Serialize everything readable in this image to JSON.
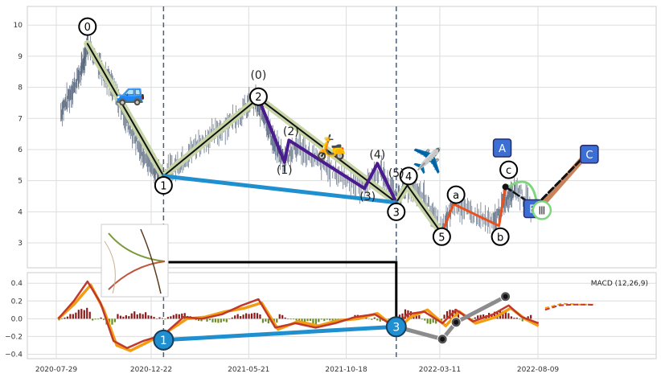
{
  "chart_data": [
    {
      "type": "line",
      "panel": "price",
      "ylim": [
        2.2,
        10.6
      ],
      "y_ticks": [
        "3",
        "4",
        "5",
        "6",
        "7",
        "8",
        "9",
        "10"
      ],
      "grid": true,
      "colors": {
        "price": "#5a6a80",
        "wave_fill": "#c8d5a8",
        "primary": "#111111",
        "purple": "#4b1a8f",
        "blue_line": "#1f8fd0",
        "dashed_vertical": "#4a5f78",
        "orange": "#e8501e",
        "copper": "#c9825a",
        "green_arc": "#7ed67e",
        "label_box": "#3b6fd4"
      },
      "price_path": [
        {
          "date": "2020-08-05",
          "y": 7.2
        },
        {
          "date": "2020-08-20",
          "y": 7.8
        },
        {
          "date": "2020-09-05",
          "y": 8.5
        },
        {
          "date": "2020-09-15",
          "y": 9.4
        },
        {
          "date": "2020-10-05",
          "y": 8.7
        },
        {
          "date": "2020-10-25",
          "y": 7.9
        },
        {
          "date": "2020-11-15",
          "y": 6.9
        },
        {
          "date": "2020-12-05",
          "y": 6.0
        },
        {
          "date": "2020-12-25",
          "y": 5.4
        },
        {
          "date": "2021-01-10",
          "y": 5.15
        },
        {
          "date": "2021-02-05",
          "y": 5.6
        },
        {
          "date": "2021-03-05",
          "y": 6.2
        },
        {
          "date": "2021-04-05",
          "y": 6.6
        },
        {
          "date": "2021-05-05",
          "y": 7.1
        },
        {
          "date": "2021-05-30",
          "y": 7.6
        },
        {
          "date": "2021-06-15",
          "y": 7.0
        },
        {
          "date": "2021-07-01",
          "y": 6.1
        },
        {
          "date": "2021-07-15",
          "y": 5.7
        },
        {
          "date": "2021-08-05",
          "y": 6.1
        },
        {
          "date": "2021-09-05",
          "y": 5.6
        },
        {
          "date": "2021-10-05",
          "y": 5.2
        },
        {
          "date": "2021-11-10",
          "y": 4.8
        },
        {
          "date": "2021-12-10",
          "y": 5.3
        },
        {
          "date": "2022-01-03",
          "y": 4.4
        },
        {
          "date": "2022-01-20",
          "y": 4.9
        },
        {
          "date": "2022-02-15",
          "y": 4.5
        },
        {
          "date": "2022-03-14",
          "y": 3.3
        },
        {
          "date": "2022-04-01",
          "y": 4.3
        },
        {
          "date": "2022-05-01",
          "y": 3.9
        },
        {
          "date": "2022-06-01",
          "y": 3.6
        },
        {
          "date": "2022-06-20",
          "y": 4.4
        },
        {
          "date": "2022-07-05",
          "y": 4.8
        },
        {
          "date": "2022-08-01",
          "y": 4.1
        }
      ],
      "wave_lines": [
        {
          "id": "main",
          "color": "#111111",
          "width": 2,
          "halo": true,
          "points": [
            {
              "date": "2020-09-15",
              "y": 9.4
            },
            {
              "date": "2021-01-10",
              "y": 5.15
            },
            {
              "date": "2021-06-05",
              "y": 7.65
            },
            {
              "date": "2022-01-03",
              "y": 4.3
            },
            {
              "date": "2022-01-20",
              "y": 4.85
            },
            {
              "date": "2022-03-14",
              "y": 3.3
            }
          ]
        },
        {
          "id": "purple",
          "color": "#4b1a8f",
          "width": 4,
          "halo": false,
          "points": [
            {
              "date": "2021-06-05",
              "y": 7.65
            },
            {
              "date": "2021-07-15",
              "y": 5.6
            },
            {
              "date": "2021-07-22",
              "y": 6.3
            },
            {
              "date": "2021-11-15",
              "y": 4.75
            },
            {
              "date": "2021-12-05",
              "y": 5.55
            },
            {
              "date": "2022-01-03",
              "y": 4.3
            }
          ]
        },
        {
          "id": "blue",
          "color": "#1f8fd0",
          "width": 5,
          "halo": false,
          "points": [
            {
              "date": "2021-01-10",
              "y": 5.15
            },
            {
              "date": "2022-01-03",
              "y": 4.3
            }
          ]
        },
        {
          "id": "orange",
          "color": "#e8501e",
          "width": 3,
          "halo": false,
          "points": [
            {
              "date": "2022-03-14",
              "y": 3.3
            },
            {
              "date": "2022-04-01",
              "y": 4.25
            },
            {
              "date": "2022-06-10",
              "y": 3.55
            },
            {
              "date": "2022-06-20",
              "y": 4.8
            }
          ]
        },
        {
          "id": "dark_dash",
          "color": "#111111",
          "width": 2.5,
          "halo": false,
          "dash": true,
          "points": [
            {
              "date": "2022-06-20",
              "y": 4.8
            },
            {
              "date": "2022-08-10",
              "y": 4.1
            }
          ]
        },
        {
          "id": "copper",
          "color": "#c9825a",
          "width": 7,
          "halo": false,
          "points": [
            {
              "date": "2022-08-10",
              "y": 4.1
            },
            {
              "date": "2022-10-25",
              "y": 5.9
            }
          ]
        },
        {
          "id": "copper_dash",
          "color": "#111111",
          "width": 3,
          "halo": false,
          "dash": true,
          "points": [
            {
              "date": "2022-08-15",
              "y": 4.4
            },
            {
              "date": "2022-10-25",
              "y": 5.9
            }
          ]
        }
      ],
      "labels": [
        {
          "text": "0",
          "date": "2020-09-15",
          "y": 9.95,
          "style": "circle"
        },
        {
          "text": "1",
          "date": "2021-01-10",
          "y": 4.85,
          "style": "circle"
        },
        {
          "text": "2",
          "date": "2021-06-05",
          "y": 7.7,
          "style": "circle"
        },
        {
          "text": "3",
          "date": "2022-01-03",
          "y": 4.0,
          "style": "circle"
        },
        {
          "text": "4",
          "date": "2022-01-22",
          "y": 5.15,
          "style": "circle"
        },
        {
          "text": "5",
          "date": "2022-03-14",
          "y": 3.2,
          "style": "circle"
        },
        {
          "text": "a",
          "date": "2022-04-05",
          "y": 4.55,
          "style": "circle"
        },
        {
          "text": "b",
          "date": "2022-06-12",
          "y": 3.2,
          "style": "circle"
        },
        {
          "text": "c",
          "date": "2022-06-25",
          "y": 5.35,
          "style": "circle"
        },
        {
          "text": "(0)",
          "date": "2021-06-05",
          "y": 8.4,
          "style": "plain"
        },
        {
          "text": "(1)",
          "date": "2021-07-15",
          "y": 5.35,
          "style": "plain"
        },
        {
          "text": "(2)",
          "date": "2021-07-25",
          "y": 6.6,
          "style": "plain"
        },
        {
          "text": "(3)",
          "date": "2021-11-20",
          "y": 4.5,
          "style": "plain"
        },
        {
          "text": "(4)",
          "date": "2021-12-05",
          "y": 5.85,
          "style": "plain"
        },
        {
          "text": "(5)",
          "date": "2022-01-03",
          "y": 5.25,
          "style": "plain"
        },
        {
          "text": "A",
          "date": "2022-06-15",
          "y": 6.05,
          "style": "box"
        },
        {
          "text": "B",
          "date": "2022-08-01",
          "y": 4.1,
          "style": "box"
        },
        {
          "text": "C",
          "date": "2022-10-27",
          "y": 5.85,
          "style": "box"
        },
        {
          "text": "Ⅲ",
          "date": "2022-08-15",
          "y": 4.05,
          "style": "green-circle"
        }
      ],
      "emoji": [
        {
          "glyph": "🚙",
          "date": "2020-11-20",
          "y": 7.8
        },
        {
          "glyph": "🛵",
          "date": "2021-09-25",
          "y": 6.05
        },
        {
          "glyph": "✈️",
          "date": "2022-02-20",
          "y": 5.6
        }
      ]
    },
    {
      "type": "line",
      "panel": "macd",
      "title": "MACD (12,26,9)",
      "ylim": [
        -0.45,
        0.52
      ],
      "y_ticks": [
        "0.4",
        "0.2",
        "0.0",
        "−0.2",
        "−0.4"
      ],
      "x_ticks": [
        "2020-07-29",
        "2020-12-22",
        "2021-05-21",
        "2021-10-18",
        "2022-03-11",
        "2022-08-09"
      ],
      "grid": true,
      "colors": {
        "macd": "#c0392b",
        "signal": "#f39c12",
        "hist_pos": "#8b1a1a",
        "hist_neg": "#6b8e23",
        "connector": "#111111",
        "gray_path": "#8c8c8c"
      },
      "macd": [
        {
          "date": "2020-08-01",
          "y": 0.0
        },
        {
          "date": "2020-08-25",
          "y": 0.2
        },
        {
          "date": "2020-09-15",
          "y": 0.42
        },
        {
          "date": "2020-10-05",
          "y": 0.18
        },
        {
          "date": "2020-10-25",
          "y": -0.25
        },
        {
          "date": "2020-11-15",
          "y": -0.33
        },
        {
          "date": "2020-12-10",
          "y": -0.25
        },
        {
          "date": "2021-01-10",
          "y": -0.18
        },
        {
          "date": "2021-02-10",
          "y": 0.02
        },
        {
          "date": "2021-03-10",
          "y": 0.0
        },
        {
          "date": "2021-04-10",
          "y": 0.05
        },
        {
          "date": "2021-05-10",
          "y": 0.15
        },
        {
          "date": "2021-06-05",
          "y": 0.22
        },
        {
          "date": "2021-07-01",
          "y": -0.1
        },
        {
          "date": "2021-08-01",
          "y": -0.05
        },
        {
          "date": "2021-09-01",
          "y": -0.1
        },
        {
          "date": "2021-10-01",
          "y": -0.05
        },
        {
          "date": "2021-11-01",
          "y": 0.02
        },
        {
          "date": "2021-12-01",
          "y": 0.05
        },
        {
          "date": "2022-01-03",
          "y": -0.1
        },
        {
          "date": "2022-01-20",
          "y": 0.05
        },
        {
          "date": "2022-02-15",
          "y": 0.08
        },
        {
          "date": "2022-03-15",
          "y": -0.05
        },
        {
          "date": "2022-04-05",
          "y": 0.1
        },
        {
          "date": "2022-05-01",
          "y": -0.03
        },
        {
          "date": "2022-06-01",
          "y": 0.05
        },
        {
          "date": "2022-06-25",
          "y": 0.15
        },
        {
          "date": "2022-07-15",
          "y": 0.02
        },
        {
          "date": "2022-08-10",
          "y": -0.05
        }
      ],
      "macd_tail": [
        {
          "date": "2022-08-20",
          "y": 0.1
        },
        {
          "date": "2022-09-10",
          "y": 0.15
        },
        {
          "date": "2022-10-01",
          "y": 0.16
        },
        {
          "date": "2022-10-25",
          "y": 0.16
        },
        {
          "date": "2022-11-05",
          "y": 0.155
        }
      ],
      "signal": [
        {
          "date": "2020-08-01",
          "y": 0.0
        },
        {
          "date": "2020-08-25",
          "y": 0.16
        },
        {
          "date": "2020-09-20",
          "y": 0.38
        },
        {
          "date": "2020-10-10",
          "y": 0.1
        },
        {
          "date": "2020-10-30",
          "y": -0.3
        },
        {
          "date": "2020-11-20",
          "y": -0.36
        },
        {
          "date": "2020-12-15",
          "y": -0.27
        },
        {
          "date": "2021-01-15",
          "y": -0.15
        },
        {
          "date": "2021-02-15",
          "y": 0.0
        },
        {
          "date": "2021-03-15",
          "y": 0.02
        },
        {
          "date": "2021-04-15",
          "y": 0.08
        },
        {
          "date": "2021-05-15",
          "y": 0.12
        },
        {
          "date": "2021-06-10",
          "y": 0.18
        },
        {
          "date": "2021-07-05",
          "y": -0.12
        },
        {
          "date": "2021-08-05",
          "y": -0.03
        },
        {
          "date": "2021-09-05",
          "y": -0.08
        },
        {
          "date": "2021-10-05",
          "y": -0.02
        },
        {
          "date": "2021-11-05",
          "y": 0.0
        },
        {
          "date": "2021-12-05",
          "y": 0.06
        },
        {
          "date": "2022-01-05",
          "y": -0.12
        },
        {
          "date": "2022-01-25",
          "y": 0.02
        },
        {
          "date": "2022-02-20",
          "y": 0.1
        },
        {
          "date": "2022-03-20",
          "y": -0.08
        },
        {
          "date": "2022-04-10",
          "y": 0.08
        },
        {
          "date": "2022-05-05",
          "y": -0.05
        },
        {
          "date": "2022-06-05",
          "y": 0.02
        },
        {
          "date": "2022-06-28",
          "y": 0.12
        },
        {
          "date": "2022-07-20",
          "y": 0.0
        },
        {
          "date": "2022-08-10",
          "y": -0.08
        }
      ],
      "signal_tail": [
        {
          "date": "2022-08-20",
          "y": 0.12
        },
        {
          "date": "2022-09-15",
          "y": 0.17
        },
        {
          "date": "2022-10-10",
          "y": 0.16
        },
        {
          "date": "2022-11-05",
          "y": 0.16
        }
      ],
      "histogram_segments": [
        {
          "start": "2020-08-01",
          "end": "2020-10-10",
          "sign": "pos"
        },
        {
          "start": "2020-10-10",
          "end": "2021-02-01",
          "sign": "neg"
        },
        {
          "start": "2021-02-01",
          "end": "2021-06-20",
          "sign": "pos"
        },
        {
          "start": "2021-06-20",
          "end": "2022-08-01",
          "sign": "mixed"
        },
        {
          "start": "2022-05-25",
          "end": "2022-07-10",
          "sign": "pos"
        }
      ],
      "wave_lines": [
        {
          "id": "blue_macd",
          "color": "#1f8fd0",
          "width": 5,
          "points": [
            {
              "date": "2021-01-10",
              "y": -0.24
            },
            {
              "date": "2022-01-03",
              "y": -0.09
            }
          ]
        },
        {
          "id": "gray_path",
          "color": "#8c8c8c",
          "width": 5,
          "points": [
            {
              "date": "2022-01-03",
              "y": -0.09
            },
            {
              "date": "2022-03-15",
              "y": -0.23
            },
            {
              "date": "2022-04-05",
              "y": -0.04
            },
            {
              "date": "2022-06-20",
              "y": 0.25
            }
          ]
        }
      ],
      "markers": [
        {
          "date": "2022-03-15",
          "y": -0.23
        },
        {
          "date": "2022-04-05",
          "y": -0.04
        },
        {
          "date": "2022-06-20",
          "y": 0.25
        }
      ],
      "labels": [
        {
          "text": "1",
          "date": "2021-01-10",
          "y": -0.24,
          "style": "filled-circle"
        },
        {
          "text": "3",
          "date": "2022-01-03",
          "y": -0.09,
          "style": "filled-circle"
        }
      ]
    }
  ]
}
